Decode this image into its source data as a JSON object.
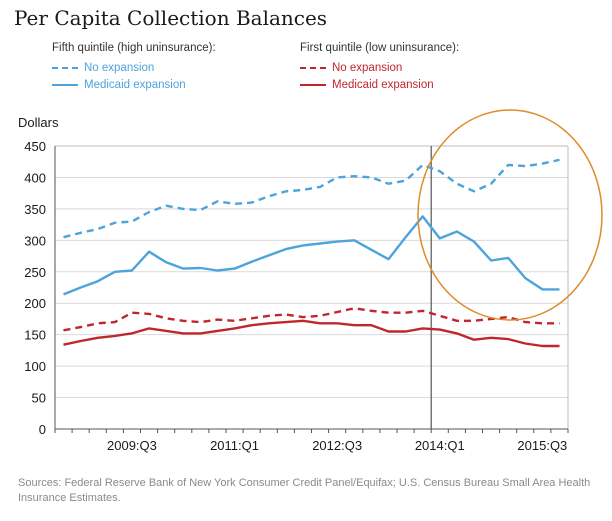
{
  "title": "Per Capita Collection Balances",
  "ylabel": "Dollars",
  "legend": {
    "groups": [
      {
        "heading": "Fifth quintile (high uninsurance):",
        "items": [
          {
            "label": "No expansion",
            "color": "#4da3dc",
            "style": "dashed"
          },
          {
            "label": "Medicaid expansion",
            "color": "#4da3dc",
            "style": "solid"
          }
        ]
      },
      {
        "heading": "First quintile (low uninsurance):",
        "items": [
          {
            "label": "No expansion",
            "color": "#c0272d",
            "style": "dashed"
          },
          {
            "label": "Medicaid expansion",
            "color": "#c0272d",
            "style": "solid"
          }
        ]
      }
    ]
  },
  "source": "Sources: Federal Reserve Bank of New York Consumer Credit Panel/Equifax; U.S. Census Bureau Small Area Health Insurance Estimates.",
  "chart_data": {
    "type": "line",
    "ylim": [
      0,
      450
    ],
    "yticks": [
      0,
      50,
      100,
      150,
      200,
      250,
      300,
      350,
      400,
      450
    ],
    "x": [
      "2008:Q3",
      "2008:Q4",
      "2009:Q1",
      "2009:Q2",
      "2009:Q3",
      "2009:Q4",
      "2010:Q1",
      "2010:Q2",
      "2010:Q3",
      "2010:Q4",
      "2011:Q1",
      "2011:Q2",
      "2011:Q3",
      "2011:Q4",
      "2012:Q1",
      "2012:Q2",
      "2012:Q3",
      "2012:Q4",
      "2013:Q1",
      "2013:Q2",
      "2013:Q3",
      "2013:Q4",
      "2014:Q1",
      "2014:Q2",
      "2014:Q3",
      "2014:Q4",
      "2015:Q1",
      "2015:Q2",
      "2015:Q3",
      "2015:Q4"
    ],
    "xtick_labels": [
      "2009:Q3",
      "2011:Q1",
      "2012:Q3",
      "2014:Q1",
      "2015:Q3"
    ],
    "vertical_line_at": "2013:Q4",
    "series": [
      {
        "name": "Fifth quintile (high uninsurance): No expansion",
        "color": "#4da3dc",
        "style": "dashed",
        "values": [
          305,
          312,
          318,
          328,
          330,
          345,
          355,
          350,
          348,
          362,
          358,
          360,
          370,
          378,
          380,
          385,
          400,
          402,
          400,
          390,
          395,
          420,
          410,
          390,
          378,
          390,
          420,
          418,
          422,
          428
        ]
      },
      {
        "name": "Fifth quintile (high uninsurance): Medicaid expansion",
        "color": "#4da3dc",
        "style": "solid",
        "values": [
          214,
          225,
          235,
          250,
          252,
          282,
          265,
          255,
          256,
          252,
          255,
          266,
          276,
          286,
          292,
          295,
          298,
          300,
          285,
          270,
          305,
          338,
          303,
          314,
          298,
          268,
          272,
          240,
          222,
          222
        ]
      },
      {
        "name": "First quintile (low uninsurance): No expansion",
        "color": "#c0272d",
        "style": "dashed",
        "values": [
          157,
          162,
          168,
          170,
          185,
          183,
          176,
          172,
          170,
          174,
          172,
          176,
          180,
          182,
          178,
          180,
          186,
          192,
          188,
          185,
          185,
          188,
          180,
          172,
          172,
          175,
          178,
          170,
          168,
          168
        ]
      },
      {
        "name": "First quintile (low uninsurance): Medicaid expansion",
        "color": "#c0272d",
        "style": "solid",
        "values": [
          134,
          140,
          145,
          148,
          152,
          160,
          156,
          152,
          152,
          156,
          160,
          165,
          168,
          170,
          172,
          168,
          168,
          165,
          165,
          155,
          155,
          160,
          158,
          152,
          142,
          145,
          143,
          136,
          132,
          132
        ]
      }
    ],
    "annotations": [
      {
        "type": "ellipse",
        "color": "#e08a2c",
        "note": "highlighted region"
      }
    ]
  }
}
